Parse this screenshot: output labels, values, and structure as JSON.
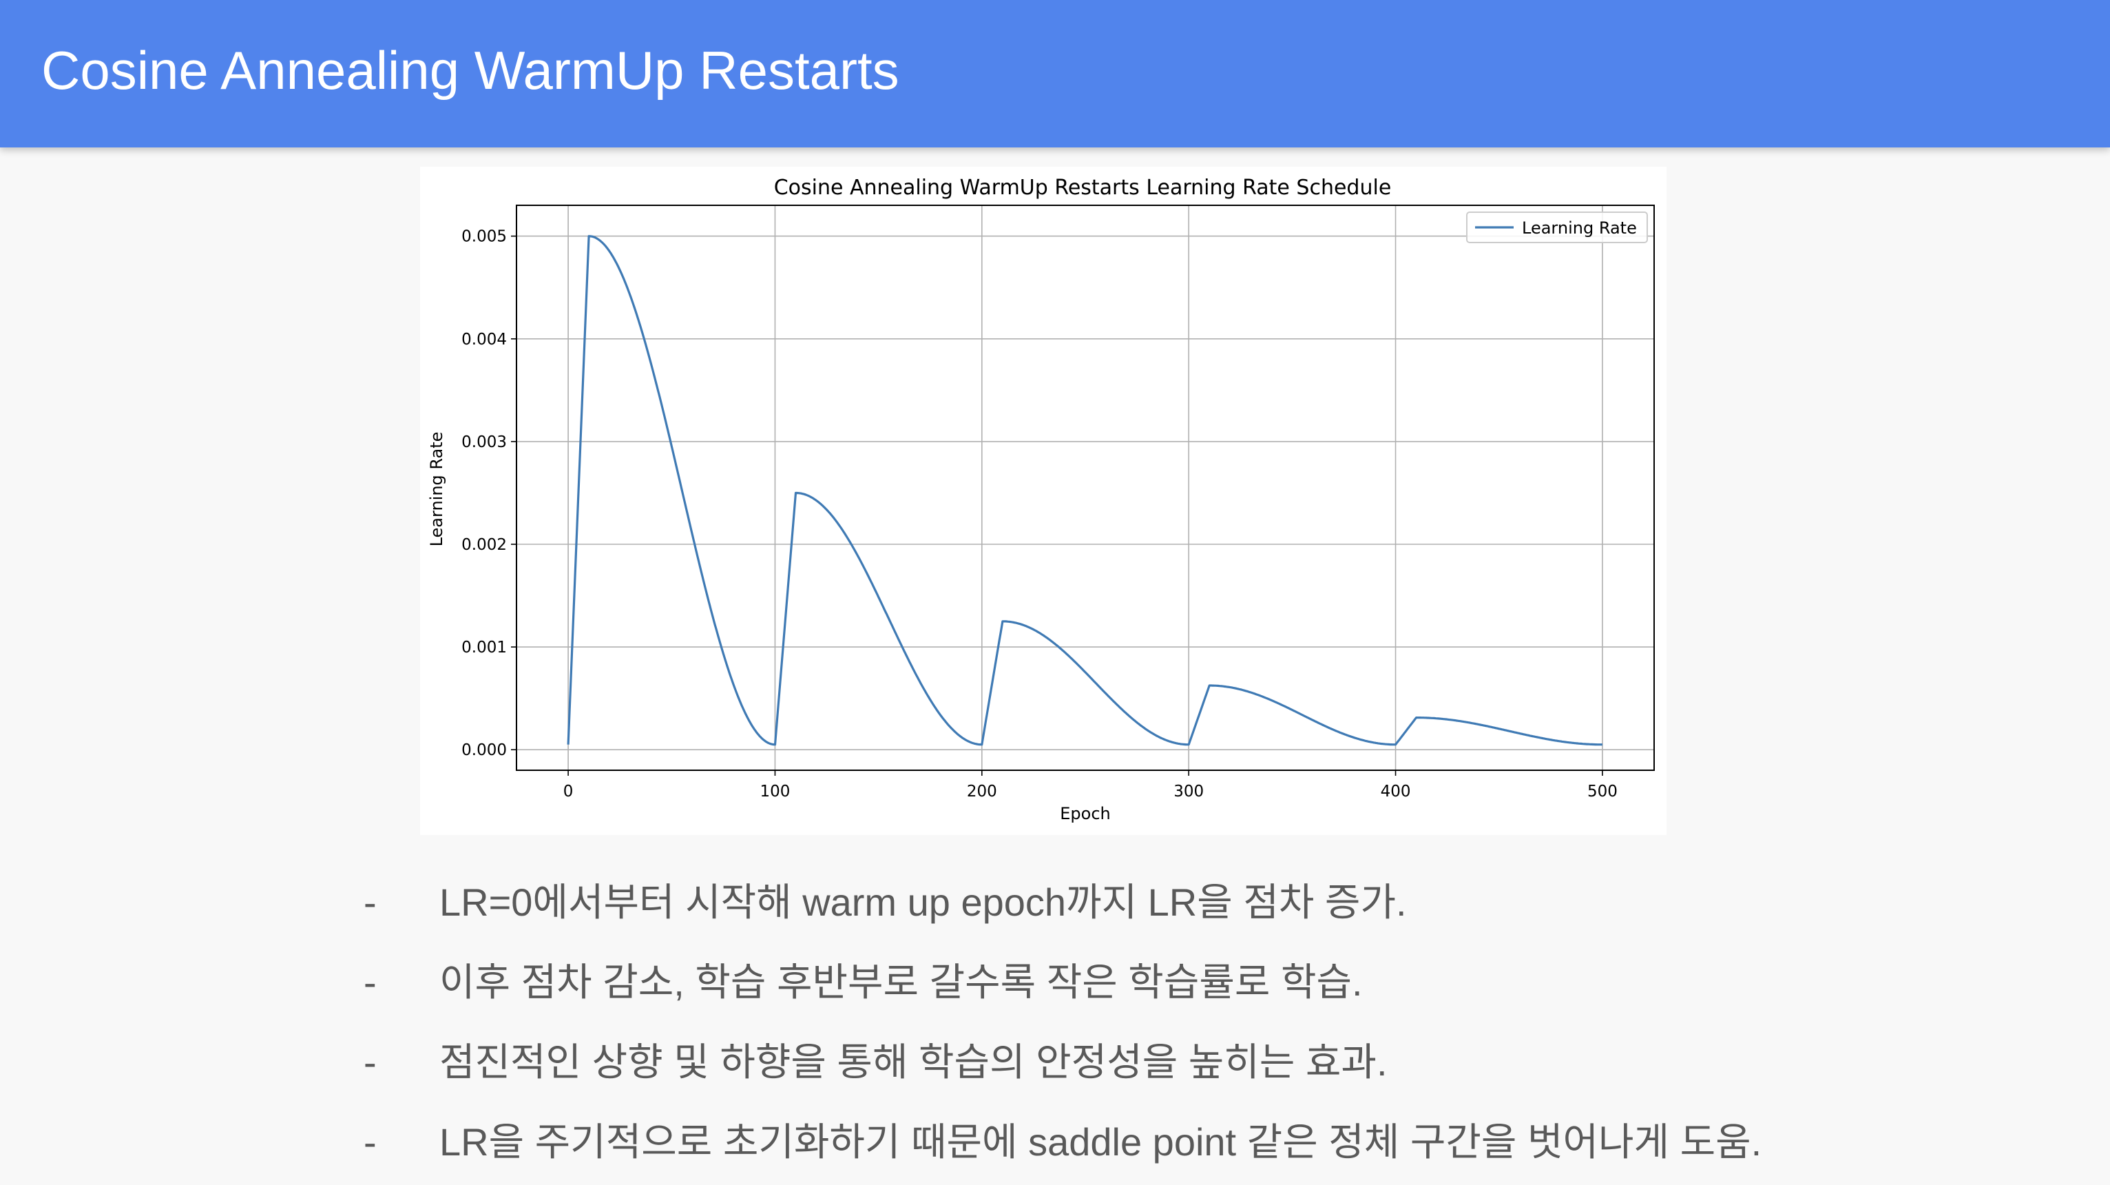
{
  "slide": {
    "title": "Cosine Annealing WarmUp Restarts",
    "accent_color": "#5184ec"
  },
  "chart_data": {
    "type": "line",
    "title": "Cosine Annealing WarmUp Restarts Learning Rate Schedule",
    "xlabel": "Epoch",
    "ylabel": "Learning Rate",
    "xlim": [
      -25,
      525
    ],
    "ylim": [
      -0.0002,
      0.0053
    ],
    "xticks": [
      0,
      100,
      200,
      300,
      400,
      500
    ],
    "xtick_labels": [
      "0",
      "100",
      "200",
      "300",
      "400",
      "500"
    ],
    "yticks": [
      0.0,
      0.001,
      0.002,
      0.003,
      0.004,
      0.005
    ],
    "ytick_labels": [
      "0.000",
      "0.001",
      "0.002",
      "0.003",
      "0.004",
      "0.005"
    ],
    "grid": true,
    "legend": {
      "position": "top-right",
      "entries": [
        "Learning Rate"
      ]
    },
    "series": [
      {
        "name": "Learning Rate",
        "color": "#3f7ab4",
        "schedule": {
          "cycle_length": 100,
          "warmup_epochs": 10,
          "base_lr": 5e-05,
          "peak_lrs": [
            0.005,
            0.0025,
            0.00125,
            0.000625,
            0.0003125
          ],
          "last_epoch": 500
        }
      }
    ]
  },
  "bullets": [
    {
      "dash": "-",
      "text": "LR=0에서부터 시작해 warm up epoch까지 LR을 점차 증가."
    },
    {
      "dash": "-",
      "text": "이후 점차 감소, 학습 후반부로 갈수록 작은 학습률로 학습."
    },
    {
      "dash": "-",
      "text": "점진적인 상향 및 하향을 통해 학습의 안정성을 높히는 효과."
    },
    {
      "dash": "-",
      "text": "LR을 주기적으로 초기화하기 때문에 saddle point 같은 정체 구간을 벗어나게 도움."
    }
  ]
}
